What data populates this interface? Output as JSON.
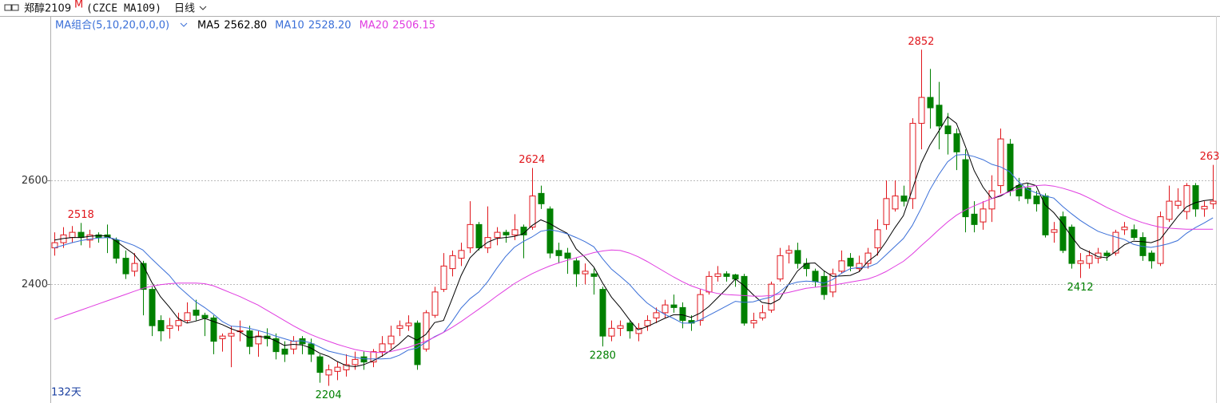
{
  "chart_data": {
    "type": "candlestick",
    "symbol": "郑醇2109",
    "symbol_flag": "M",
    "code": "(CZCE MA109)",
    "period": "日线",
    "ma_group": "MA组合(5,10,20,0,0,0)",
    "days": "132天",
    "ylim": [
      2171,
      2917
    ],
    "yticks": [
      2400,
      2600
    ],
    "grid": true,
    "up_color": "#e0161c",
    "down_color": "#008000",
    "ohlc": [
      [
        2470,
        2500,
        2455,
        2480
      ],
      [
        2480,
        2510,
        2470,
        2495
      ],
      [
        2490,
        2512,
        2480,
        2500
      ],
      [
        2500,
        2518,
        2475,
        2490
      ],
      [
        2485,
        2505,
        2470,
        2495
      ],
      [
        2495,
        2500,
        2480,
        2490
      ],
      [
        2495,
        2515,
        2460,
        2490
      ],
      [
        2485,
        2490,
        2440,
        2450
      ],
      [
        2450,
        2465,
        2410,
        2420
      ],
      [
        2425,
        2460,
        2415,
        2440
      ],
      [
        2440,
        2445,
        2340,
        2390
      ],
      [
        2390,
        2395,
        2300,
        2320
      ],
      [
        2330,
        2340,
        2290,
        2310
      ],
      [
        2315,
        2335,
        2295,
        2320
      ],
      [
        2320,
        2345,
        2310,
        2330
      ],
      [
        2330,
        2365,
        2325,
        2345
      ],
      [
        2350,
        2370,
        2330,
        2340
      ],
      [
        2340,
        2345,
        2300,
        2335
      ],
      [
        2335,
        2340,
        2265,
        2290
      ],
      [
        2295,
        2305,
        2270,
        2300
      ],
      [
        2300,
        2320,
        2240,
        2305
      ],
      [
        2310,
        2330,
        2290,
        2310
      ],
      [
        2310,
        2320,
        2265,
        2280
      ],
      [
        2285,
        2310,
        2260,
        2300
      ],
      [
        2300,
        2315,
        2280,
        2295
      ],
      [
        2295,
        2305,
        2255,
        2270
      ],
      [
        2275,
        2290,
        2250,
        2265
      ],
      [
        2275,
        2300,
        2265,
        2290
      ],
      [
        2295,
        2300,
        2265,
        2285
      ],
      [
        2285,
        2295,
        2250,
        2265
      ],
      [
        2260,
        2265,
        2210,
        2230
      ],
      [
        2225,
        2245,
        2204,
        2235
      ],
      [
        2232,
        2250,
        2215,
        2240
      ],
      [
        2235,
        2265,
        2222,
        2245
      ],
      [
        2245,
        2270,
        2235,
        2255
      ],
      [
        2260,
        2270,
        2235,
        2250
      ],
      [
        2250,
        2275,
        2240,
        2270
      ],
      [
        2270,
        2300,
        2260,
        2285
      ],
      [
        2285,
        2320,
        2275,
        2300
      ],
      [
        2315,
        2330,
        2300,
        2320
      ],
      [
        2320,
        2340,
        2310,
        2325
      ],
      [
        2325,
        2330,
        2235,
        2245
      ],
      [
        2275,
        2350,
        2270,
        2345
      ],
      [
        2340,
        2395,
        2335,
        2385
      ],
      [
        2390,
        2460,
        2385,
        2435
      ],
      [
        2430,
        2465,
        2415,
        2455
      ],
      [
        2450,
        2480,
        2435,
        2465
      ],
      [
        2470,
        2560,
        2460,
        2515
      ],
      [
        2515,
        2520,
        2465,
        2470
      ],
      [
        2470,
        2550,
        2460,
        2490
      ],
      [
        2490,
        2510,
        2475,
        2500
      ],
      [
        2500,
        2505,
        2480,
        2495
      ],
      [
        2495,
        2535,
        2485,
        2505
      ],
      [
        2510,
        2515,
        2450,
        2495
      ],
      [
        2510,
        2624,
        2505,
        2570
      ],
      [
        2575,
        2590,
        2545,
        2555
      ],
      [
        2545,
        2550,
        2450,
        2460
      ],
      [
        2465,
        2480,
        2440,
        2455
      ],
      [
        2460,
        2470,
        2420,
        2450
      ],
      [
        2445,
        2450,
        2395,
        2420
      ],
      [
        2420,
        2440,
        2400,
        2425
      ],
      [
        2420,
        2430,
        2380,
        2415
      ],
      [
        2390,
        2395,
        2280,
        2300
      ],
      [
        2300,
        2330,
        2290,
        2315
      ],
      [
        2315,
        2330,
        2300,
        2320
      ],
      [
        2325,
        2330,
        2295,
        2310
      ],
      [
        2305,
        2325,
        2290,
        2315
      ],
      [
        2320,
        2340,
        2310,
        2330
      ],
      [
        2335,
        2355,
        2325,
        2345
      ],
      [
        2345,
        2370,
        2335,
        2360
      ],
      [
        2360,
        2380,
        2345,
        2355
      ],
      [
        2355,
        2365,
        2315,
        2330
      ],
      [
        2330,
        2340,
        2310,
        2325
      ],
      [
        2330,
        2390,
        2320,
        2380
      ],
      [
        2385,
        2425,
        2380,
        2415
      ],
      [
        2415,
        2435,
        2405,
        2420
      ],
      [
        2420,
        2425,
        2405,
        2415
      ],
      [
        2418,
        2420,
        2395,
        2410
      ],
      [
        2415,
        2420,
        2320,
        2325
      ],
      [
        2325,
        2345,
        2315,
        2330
      ],
      [
        2335,
        2360,
        2330,
        2345
      ],
      [
        2350,
        2405,
        2345,
        2400
      ],
      [
        2410,
        2470,
        2405,
        2455
      ],
      [
        2460,
        2475,
        2440,
        2465
      ],
      [
        2465,
        2480,
        2430,
        2440
      ],
      [
        2440,
        2450,
        2415,
        2430
      ],
      [
        2425,
        2430,
        2395,
        2405
      ],
      [
        2415,
        2425,
        2370,
        2380
      ],
      [
        2385,
        2430,
        2375,
        2420
      ],
      [
        2425,
        2465,
        2420,
        2445
      ],
      [
        2450,
        2460,
        2425,
        2435
      ],
      [
        2430,
        2455,
        2425,
        2440
      ],
      [
        2440,
        2470,
        2430,
        2460
      ],
      [
        2470,
        2525,
        2455,
        2505
      ],
      [
        2515,
        2600,
        2505,
        2565
      ],
      [
        2545,
        2600,
        2540,
        2570
      ],
      [
        2570,
        2590,
        2550,
        2560
      ],
      [
        2565,
        2720,
        2545,
        2710
      ],
      [
        2710,
        2852,
        2660,
        2760
      ],
      [
        2760,
        2815,
        2700,
        2740
      ],
      [
        2745,
        2790,
        2660,
        2705
      ],
      [
        2705,
        2730,
        2650,
        2690
      ],
      [
        2690,
        2700,
        2620,
        2655
      ],
      [
        2640,
        2660,
        2500,
        2530
      ],
      [
        2535,
        2560,
        2500,
        2515
      ],
      [
        2520,
        2560,
        2505,
        2545
      ],
      [
        2545,
        2610,
        2520,
        2580
      ],
      [
        2590,
        2700,
        2575,
        2680
      ],
      [
        2670,
        2680,
        2570,
        2580
      ],
      [
        2590,
        2605,
        2560,
        2570
      ],
      [
        2585,
        2595,
        2555,
        2565
      ],
      [
        2570,
        2580,
        2540,
        2555
      ],
      [
        2570,
        2575,
        2490,
        2495
      ],
      [
        2500,
        2520,
        2480,
        2505
      ],
      [
        2530,
        2540,
        2460,
        2465
      ],
      [
        2510,
        2515,
        2430,
        2440
      ],
      [
        2440,
        2460,
        2412,
        2445
      ],
      [
        2440,
        2465,
        2430,
        2455
      ],
      [
        2450,
        2470,
        2440,
        2460
      ],
      [
        2460,
        2465,
        2445,
        2455
      ],
      [
        2460,
        2505,
        2455,
        2500
      ],
      [
        2505,
        2520,
        2495,
        2510
      ],
      [
        2505,
        2515,
        2485,
        2490
      ],
      [
        2490,
        2500,
        2445,
        2455
      ],
      [
        2460,
        2465,
        2430,
        2445
      ],
      [
        2440,
        2540,
        2435,
        2530
      ],
      [
        2525,
        2590,
        2520,
        2560
      ],
      [
        2552,
        2585,
        2545,
        2560
      ],
      [
        2540,
        2595,
        2525,
        2590
      ],
      [
        2590,
        2595,
        2530,
        2545
      ],
      [
        2545,
        2560,
        2530,
        2550
      ],
      [
        2555,
        2630,
        2545,
        2560
      ]
    ],
    "series": [
      {
        "name": "MA5",
        "label": "2562.80",
        "color": "#000000",
        "values": [
          2485,
          2488,
          2490,
          2490,
          2492,
          2494,
          2493,
          2483,
          2470,
          2458,
          2438,
          2404,
          2376,
          2356,
          2334,
          2325,
          2329,
          2334,
          2328,
          2322,
          2314,
          2308,
          2297,
          2299,
          2298,
          2291,
          2282,
          2284,
          2283,
          2277,
          2267,
          2261,
          2251,
          2243,
          2241,
          2245,
          2252,
          2261,
          2272,
          2285,
          2301,
          2292,
          2303,
          2326,
          2330,
          2373,
          2417,
          2451,
          2468,
          2481,
          2488,
          2490,
          2492,
          2497,
          2513,
          2524,
          2517,
          2507,
          2498,
          2468,
          2452,
          2433,
          2402,
          2375,
          2355,
          2332,
          2312,
          2318,
          2326,
          2334,
          2341,
          2341,
          2336,
          2344,
          2357,
          2374,
          2391,
          2410,
          2397,
          2380,
          2365,
          2362,
          2371,
          2399,
          2425,
          2440,
          2441,
          2426,
          2415,
          2416,
          2417,
          2424,
          2444,
          2457,
          2481,
          2508,
          2532,
          2582,
          2633,
          2668,
          2695,
          2723,
          2710,
          2666,
          2619,
          2587,
          2565,
          2570,
          2580,
          2591,
          2595,
          2590,
          2553,
          2538,
          2517,
          2492,
          2470,
          2462,
          2453,
          2451,
          2463,
          2476,
          2483,
          2482,
          2480,
          2486,
          2508,
          2530,
          2549,
          2557,
          2561,
          2563
        ]
      },
      {
        "name": "MA10",
        "label": "2528.20",
        "color": "#3a6fd8",
        "values": [
          2470,
          2475,
          2480,
          2484,
          2487,
          2489,
          2490,
          2487,
          2481,
          2475,
          2466,
          2449,
          2433,
          2417,
          2396,
          2381,
          2366,
          2355,
          2342,
          2328,
          2319,
          2318,
          2315,
          2311,
          2306,
          2300,
          2295,
          2290,
          2291,
          2287,
          2279,
          2271,
          2267,
          2263,
          2259,
          2256,
          2256,
          2256,
          2257,
          2263,
          2273,
          2277,
          2288,
          2299,
          2307,
          2329,
          2354,
          2372,
          2385,
          2405,
          2430,
          2453,
          2471,
          2482,
          2491,
          2502,
          2505,
          2502,
          2497,
          2490,
          2482,
          2472,
          2449,
          2429,
          2415,
          2400,
          2381,
          2364,
          2352,
          2342,
          2334,
          2325,
          2325,
          2331,
          2340,
          2349,
          2358,
          2367,
          2365,
          2366,
          2371,
          2375,
          2385,
          2399,
          2404,
          2406,
          2405,
          2402,
          2409,
          2421,
          2430,
          2432,
          2433,
          2440,
          2456,
          2472,
          2488,
          2513,
          2546,
          2582,
          2611,
          2636,
          2649,
          2650,
          2646,
          2640,
          2631,
          2626,
          2617,
          2598,
          2583,
          2576,
          2570,
          2566,
          2550,
          2536,
          2523,
          2512,
          2502,
          2496,
          2491,
          2486,
          2477,
          2473,
          2471,
          2474,
          2478,
          2484,
          2498,
          2509,
          2518,
          2528
        ]
      },
      {
        "name": "MA20",
        "label": "2506.15",
        "color": "#e03ce0",
        "values": [
          2332,
          2338,
          2344,
          2350,
          2356,
          2362,
          2368,
          2374,
          2380,
          2386,
          2392,
          2396,
          2399,
          2401,
          2402,
          2402,
          2402,
          2401,
          2397,
          2390,
          2383,
          2376,
          2368,
          2360,
          2350,
          2340,
          2330,
          2320,
          2311,
          2303,
          2296,
          2290,
          2284,
          2279,
          2274,
          2271,
          2269,
          2268,
          2270,
          2274,
          2278,
          2284,
          2290,
          2298,
          2307,
          2317,
          2328,
          2340,
          2352,
          2364,
          2377,
          2389,
          2401,
          2411,
          2420,
          2428,
          2435,
          2441,
          2446,
          2451,
          2456,
          2461,
          2464,
          2466,
          2465,
          2460,
          2453,
          2444,
          2434,
          2424,
          2414,
          2405,
          2397,
          2391,
          2386,
          2382,
          2380,
          2379,
          2378,
          2377,
          2377,
          2378,
          2381,
          2384,
          2388,
          2392,
          2394,
          2396,
          2398,
          2401,
          2404,
          2407,
          2410,
          2416,
          2424,
          2434,
          2444,
          2458,
          2474,
          2489,
          2505,
          2520,
          2533,
          2543,
          2551,
          2558,
          2565,
          2572,
          2578,
          2584,
          2588,
          2590,
          2591,
          2589,
          2585,
          2580,
          2574,
          2566,
          2557,
          2548,
          2540,
          2532,
          2525,
          2519,
          2514,
          2510,
          2508,
          2507,
          2506,
          2506,
          2506,
          2506
        ]
      }
    ]
  }
}
